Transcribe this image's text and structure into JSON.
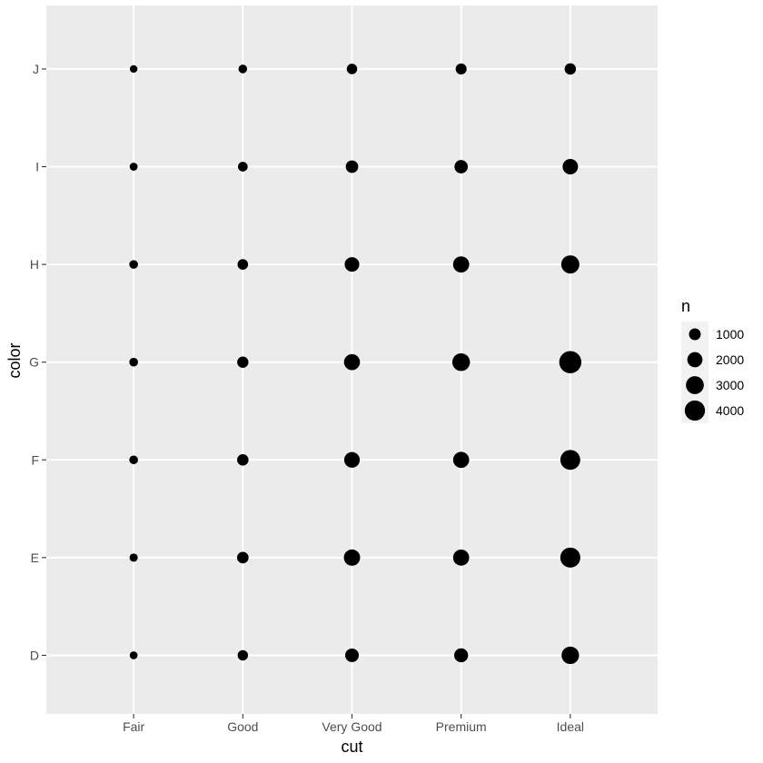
{
  "chart_data": {
    "type": "scatter",
    "x_categories": [
      "Fair",
      "Good",
      "Very Good",
      "Premium",
      "Ideal"
    ],
    "y_categories": [
      "D",
      "E",
      "F",
      "G",
      "H",
      "I",
      "J"
    ],
    "xlabel": "cut",
    "ylabel": "color",
    "size_legend": {
      "title": "n",
      "breaks": [
        1000,
        2000,
        3000,
        4000
      ]
    },
    "grid": true,
    "legend_position": "right",
    "points": [
      {
        "x": "Fair",
        "y": "D",
        "n": 163
      },
      {
        "x": "Fair",
        "y": "E",
        "n": 224
      },
      {
        "x": "Fair",
        "y": "F",
        "n": 312
      },
      {
        "x": "Fair",
        "y": "G",
        "n": 314
      },
      {
        "x": "Fair",
        "y": "H",
        "n": 303
      },
      {
        "x": "Fair",
        "y": "I",
        "n": 175
      },
      {
        "x": "Fair",
        "y": "J",
        "n": 119
      },
      {
        "x": "Good",
        "y": "D",
        "n": 662
      },
      {
        "x": "Good",
        "y": "E",
        "n": 933
      },
      {
        "x": "Good",
        "y": "F",
        "n": 909
      },
      {
        "x": "Good",
        "y": "G",
        "n": 871
      },
      {
        "x": "Good",
        "y": "H",
        "n": 702
      },
      {
        "x": "Good",
        "y": "I",
        "n": 522
      },
      {
        "x": "Good",
        "y": "J",
        "n": 307
      },
      {
        "x": "Very Good",
        "y": "D",
        "n": 1513
      },
      {
        "x": "Very Good",
        "y": "E",
        "n": 2400
      },
      {
        "x": "Very Good",
        "y": "F",
        "n": 2164
      },
      {
        "x": "Very Good",
        "y": "G",
        "n": 2299
      },
      {
        "x": "Very Good",
        "y": "H",
        "n": 1824
      },
      {
        "x": "Very Good",
        "y": "I",
        "n": 1204
      },
      {
        "x": "Very Good",
        "y": "J",
        "n": 678
      },
      {
        "x": "Premium",
        "y": "D",
        "n": 1603
      },
      {
        "x": "Premium",
        "y": "E",
        "n": 2337
      },
      {
        "x": "Premium",
        "y": "F",
        "n": 2331
      },
      {
        "x": "Premium",
        "y": "G",
        "n": 2924
      },
      {
        "x": "Premium",
        "y": "H",
        "n": 2360
      },
      {
        "x": "Premium",
        "y": "I",
        "n": 1428
      },
      {
        "x": "Premium",
        "y": "J",
        "n": 808
      },
      {
        "x": "Ideal",
        "y": "D",
        "n": 2834
      },
      {
        "x": "Ideal",
        "y": "E",
        "n": 3903
      },
      {
        "x": "Ideal",
        "y": "F",
        "n": 3826
      },
      {
        "x": "Ideal",
        "y": "G",
        "n": 4884
      },
      {
        "x": "Ideal",
        "y": "H",
        "n": 3115
      },
      {
        "x": "Ideal",
        "y": "I",
        "n": 2093
      },
      {
        "x": "Ideal",
        "y": "J",
        "n": 896
      }
    ],
    "colors": {
      "panel_background": "#EBEBEB",
      "grid": "#FFFFFF",
      "point": "#000000"
    }
  }
}
